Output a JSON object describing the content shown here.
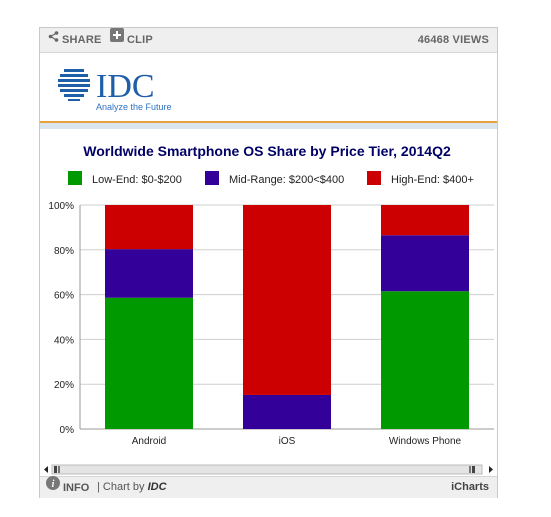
{
  "toolbar": {
    "share_label": "SHARE",
    "clip_label": "CLIP",
    "views": "46468 VIEWS"
  },
  "logo": {
    "brand": "IDC",
    "tagline": "Analyze the Future"
  },
  "footer": {
    "info_label": "INFO",
    "separator": "|",
    "chart_by": "Chart by",
    "chart_by_brand": "IDC",
    "provider": "iCharts"
  },
  "colors": {
    "low": "#009900",
    "mid": "#330099",
    "high": "#cc0000",
    "accent": "#e8a23c",
    "title": "#000066"
  },
  "chart_data": {
    "type": "bar",
    "stacked": true,
    "title": "Worldwide Smartphone OS Share by Price Tier, 2014Q2",
    "categories": [
      "Android",
      "iOS",
      "Windows Phone"
    ],
    "series": [
      {
        "name": "Low-End: $0-$200",
        "values": [
          58.6,
          0,
          61.5
        ]
      },
      {
        "name": "Mid-Range: $200<$400",
        "values": [
          21.7,
          15.2,
          25
        ]
      },
      {
        "name": "High-End: $400+",
        "values": [
          19.7,
          84.8,
          13.5
        ]
      }
    ],
    "y_ticks": [
      "0%",
      "20%",
      "40%",
      "60%",
      "80%",
      "100%"
    ],
    "ylim": [
      0,
      100
    ],
    "legend_position": "top",
    "grid": true
  }
}
